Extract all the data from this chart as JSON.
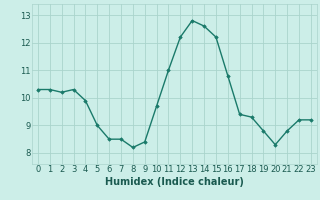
{
  "x": [
    0,
    1,
    2,
    3,
    4,
    5,
    6,
    7,
    8,
    9,
    10,
    11,
    12,
    13,
    14,
    15,
    16,
    17,
    18,
    19,
    20,
    21,
    22,
    23
  ],
  "y": [
    10.3,
    10.3,
    10.2,
    10.3,
    9.9,
    9.0,
    8.5,
    8.5,
    8.2,
    8.4,
    9.7,
    11.0,
    12.2,
    12.8,
    12.6,
    12.2,
    10.8,
    9.4,
    9.3,
    8.8,
    8.3,
    8.8,
    9.2,
    9.2
  ],
  "line_color": "#1a7a6a",
  "marker": "D",
  "marker_size": 1.8,
  "linewidth": 1.0,
  "bg_color": "#cceee8",
  "grid_color": "#aad4cc",
  "xlabel": "Humidex (Indice chaleur)",
  "xlabel_fontsize": 7,
  "xlabel_fontweight": "bold",
  "xtick_labels": [
    "0",
    "1",
    "2",
    "3",
    "4",
    "5",
    "6",
    "7",
    "8",
    "9",
    "10",
    "11",
    "12",
    "13",
    "14",
    "15",
    "16",
    "17",
    "18",
    "19",
    "20",
    "21",
    "22",
    "23"
  ],
  "ytick_labels": [
    "8",
    "9",
    "10",
    "11",
    "12",
    "13"
  ],
  "yticks": [
    8,
    9,
    10,
    11,
    12,
    13
  ],
  "ylim": [
    7.6,
    13.4
  ],
  "xlim": [
    -0.5,
    23.5
  ],
  "tick_fontsize": 6
}
